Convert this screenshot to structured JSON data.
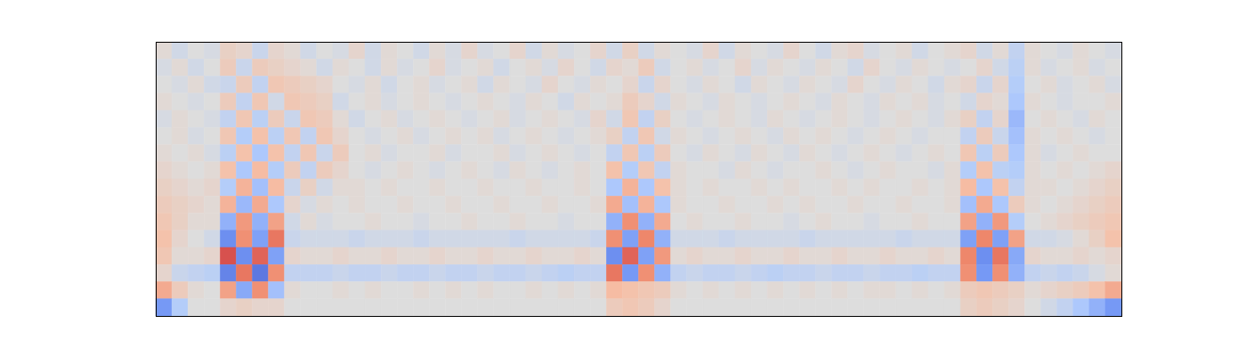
{
  "chart_data": {
    "type": "heatmap",
    "tick_labels": false,
    "zlim": [
      -1,
      1
    ],
    "cells": [
      [
        0.05,
        -0.1,
        0.0,
        -0.05,
        0.15,
        0.1,
        -0.15,
        0.1,
        0.05,
        -0.1,
        0.0,
        -0.05,
        0.1,
        -0.1,
        0.05,
        0.0,
        -0.1,
        0.05,
        -0.05,
        0.1,
        -0.05,
        0.0,
        0.1,
        -0.1,
        0.05,
        -0.05,
        0.0,
        0.1,
        -0.1,
        0.15,
        -0.1,
        0.05,
        0.0,
        -0.05,
        0.1,
        -0.1,
        0.05,
        0.0,
        -0.05,
        0.1,
        0.0,
        -0.1,
        0.05,
        0.1,
        -0.05,
        0.0,
        0.05,
        -0.1,
        0.0,
        0.05,
        0.1,
        -0.1,
        0.05,
        -0.2,
        0.05,
        0.0,
        -0.05,
        0.05,
        0.0,
        -0.05
      ],
      [
        -0.05,
        0.05,
        -0.1,
        0.0,
        0.2,
        -0.15,
        0.2,
        0.15,
        0.1,
        0.05,
        -0.1,
        0.05,
        0.0,
        -0.1,
        0.05,
        -0.05,
        0.0,
        0.1,
        -0.05,
        0.0,
        0.05,
        -0.1,
        0.0,
        0.05,
        -0.05,
        0.1,
        0.0,
        -0.1,
        0.1,
        0.05,
        0.2,
        -0.1,
        0.0,
        0.05,
        -0.05,
        0.0,
        0.1,
        -0.05,
        0.05,
        0.0,
        -0.05,
        0.05,
        0.0,
        -0.1,
        0.1,
        0.0,
        -0.05,
        0.05,
        0.0,
        -0.05,
        0.0,
        0.1,
        -0.1,
        -0.25,
        0.05,
        -0.05,
        0.0,
        0.05,
        -0.05,
        0.0
      ],
      [
        0.0,
        -0.05,
        0.05,
        -0.1,
        -0.15,
        0.2,
        -0.2,
        0.25,
        0.2,
        0.15,
        0.1,
        0.0,
        -0.05,
        0.05,
        -0.1,
        0.0,
        0.05,
        -0.05,
        0.0,
        0.05,
        -0.1,
        0.05,
        0.0,
        -0.05,
        0.1,
        0.0,
        -0.05,
        0.05,
        0.0,
        0.1,
        -0.15,
        0.1,
        0.0,
        -0.05,
        0.05,
        0.0,
        -0.1,
        0.05,
        0.0,
        -0.05,
        0.05,
        0.0,
        -0.05,
        0.1,
        0.0,
        -0.05,
        0.05,
        0.0,
        -0.1,
        0.05,
        0.1,
        -0.15,
        0.1,
        -0.3,
        0.0,
        0.05,
        -0.05,
        0.0,
        0.05,
        -0.05
      ],
      [
        0.05,
        0.0,
        -0.05,
        0.0,
        0.2,
        -0.2,
        0.25,
        -0.1,
        0.25,
        0.2,
        0.15,
        -0.1,
        0.0,
        0.05,
        -0.05,
        0.0,
        0.05,
        0.0,
        -0.05,
        0.0,
        0.05,
        0.0,
        -0.05,
        0.05,
        0.0,
        -0.1,
        0.05,
        0.0,
        0.05,
        0.2,
        0.1,
        -0.1,
        0.05,
        0.0,
        -0.05,
        0.05,
        0.0,
        -0.05,
        0.0,
        0.05,
        0.0,
        -0.05,
        0.05,
        0.0,
        -0.05,
        0.05,
        0.0,
        0.05,
        -0.05,
        0.0,
        -0.1,
        0.1,
        0.05,
        -0.35,
        0.05,
        0.0,
        -0.05,
        0.0,
        0.0,
        0.05
      ],
      [
        -0.05,
        0.05,
        0.0,
        -0.05,
        -0.2,
        0.25,
        -0.25,
        0.2,
        -0.15,
        0.25,
        0.2,
        0.05,
        -0.1,
        0.0,
        0.05,
        -0.05,
        0.0,
        0.05,
        0.0,
        -0.05,
        0.0,
        0.05,
        -0.05,
        0.0,
        0.05,
        0.0,
        -0.05,
        0.1,
        -0.1,
        0.25,
        -0.2,
        0.15,
        0.0,
        -0.05,
        0.0,
        0.05,
        0.0,
        -0.05,
        0.05,
        0.0,
        -0.05,
        0.0,
        0.05,
        0.0,
        -0.05,
        0.0,
        0.05,
        0.0,
        -0.05,
        0.05,
        0.15,
        -0.2,
        0.1,
        -0.45,
        0.0,
        0.05,
        0.0,
        -0.05,
        0.05,
        0.0
      ],
      [
        0.0,
        0.05,
        -0.05,
        0.0,
        0.25,
        -0.3,
        0.3,
        -0.25,
        0.25,
        -0.2,
        0.25,
        0.1,
        0.0,
        -0.05,
        0.0,
        0.05,
        -0.05,
        0.0,
        0.05,
        0.0,
        0.05,
        -0.05,
        0.0,
        0.05,
        0.0,
        -0.05,
        0.0,
        0.05,
        0.15,
        -0.2,
        0.25,
        -0.1,
        0.05,
        0.0,
        -0.05,
        0.0,
        0.05,
        0.0,
        -0.05,
        0.05,
        0.0,
        0.05,
        0.0,
        -0.05,
        0.0,
        0.05,
        0.0,
        -0.05,
        0.0,
        0.0,
        -0.2,
        0.2,
        -0.15,
        -0.4,
        0.05,
        0.0,
        0.05,
        0.0,
        -0.05,
        0.0
      ],
      [
        0.05,
        0.0,
        0.05,
        -0.05,
        -0.25,
        0.3,
        -0.35,
        0.3,
        -0.2,
        0.25,
        -0.15,
        0.2,
        0.0,
        0.05,
        -0.05,
        0.0,
        0.0,
        0.05,
        -0.05,
        0.0,
        0.0,
        0.05,
        -0.05,
        0.0,
        0.05,
        0.0,
        -0.05,
        0.0,
        -0.2,
        0.25,
        -0.25,
        0.2,
        0.0,
        -0.05,
        0.05,
        0.0,
        -0.05,
        0.05,
        0.0,
        -0.05,
        0.05,
        0.0,
        -0.05,
        0.0,
        0.05,
        0.0,
        -0.05,
        0.0,
        0.05,
        0.0,
        0.25,
        -0.25,
        0.2,
        -0.35,
        0.05,
        -0.05,
        0.0,
        0.05,
        0.0,
        0.0
      ],
      [
        0.1,
        0.05,
        0.0,
        0.05,
        0.3,
        -0.35,
        0.35,
        -0.3,
        0.2,
        -0.2,
        0.2,
        0.1,
        0.0,
        -0.05,
        0.0,
        0.05,
        0.0,
        -0.05,
        0.0,
        0.05,
        0.0,
        -0.05,
        0.05,
        0.0,
        -0.05,
        0.0,
        0.05,
        0.0,
        0.3,
        -0.3,
        0.25,
        -0.2,
        0.05,
        0.0,
        0.0,
        -0.05,
        0.05,
        0.0,
        -0.05,
        0.0,
        0.0,
        0.05,
        0.0,
        -0.05,
        0.0,
        0.05,
        0.0,
        0.0,
        -0.05,
        0.05,
        -0.3,
        0.3,
        -0.25,
        -0.3,
        0.05,
        0.0,
        0.05,
        0.0,
        0.05,
        0.1
      ],
      [
        0.15,
        0.1,
        0.05,
        0.1,
        -0.3,
        0.4,
        -0.4,
        0.35,
        -0.15,
        0.15,
        -0.1,
        0.05,
        0.05,
        0.0,
        0.05,
        0.0,
        0.0,
        0.05,
        0.0,
        0.0,
        0.05,
        0.0,
        0.0,
        0.05,
        0.0,
        0.0,
        0.05,
        0.0,
        -0.35,
        0.4,
        -0.35,
        0.3,
        0.05,
        0.0,
        0.05,
        0.0,
        0.0,
        0.05,
        0.0,
        0.05,
        0.0,
        0.0,
        0.05,
        0.0,
        0.05,
        0.0,
        0.0,
        0.05,
        0.0,
        0.05,
        0.35,
        -0.35,
        0.3,
        -0.2,
        0.05,
        0.05,
        0.0,
        0.05,
        0.1,
        0.15
      ],
      [
        0.2,
        0.15,
        0.1,
        0.05,
        0.4,
        -0.45,
        0.45,
        -0.35,
        0.1,
        -0.05,
        0.05,
        0.0,
        0.05,
        0.0,
        0.0,
        0.05,
        0.0,
        0.0,
        0.05,
        0.0,
        0.0,
        0.05,
        0.0,
        0.0,
        0.05,
        0.0,
        0.0,
        0.05,
        0.45,
        -0.4,
        0.4,
        -0.35,
        0.05,
        0.0,
        0.0,
        0.05,
        0.0,
        0.0,
        0.05,
        0.0,
        0.05,
        0.0,
        0.0,
        0.05,
        0.0,
        0.0,
        0.05,
        0.0,
        0.0,
        0.05,
        -0.4,
        0.45,
        -0.35,
        0.2,
        0.05,
        0.0,
        0.05,
        0.1,
        0.15,
        0.2
      ],
      [
        0.25,
        0.15,
        0.05,
        0.05,
        -0.5,
        0.55,
        -0.5,
        0.5,
        -0.1,
        0.05,
        -0.05,
        0.0,
        0.0,
        0.05,
        0.0,
        0.0,
        -0.05,
        0.0,
        0.0,
        0.05,
        0.0,
        0.0,
        0.05,
        0.0,
        0.0,
        -0.05,
        0.0,
        0.0,
        -0.5,
        0.6,
        -0.5,
        0.45,
        0.0,
        0.05,
        0.0,
        0.0,
        0.05,
        0.0,
        0.0,
        -0.05,
        0.0,
        0.05,
        0.0,
        0.0,
        -0.05,
        0.0,
        0.0,
        0.05,
        0.0,
        0.0,
        0.5,
        -0.5,
        0.55,
        -0.3,
        0.0,
        0.05,
        0.1,
        0.15,
        0.2,
        0.25
      ],
      [
        0.3,
        0.1,
        0.0,
        -0.1,
        -0.7,
        0.6,
        -0.6,
        0.7,
        -0.15,
        -0.1,
        -0.1,
        -0.1,
        -0.15,
        -0.1,
        -0.1,
        -0.1,
        -0.15,
        -0.1,
        -0.1,
        -0.1,
        -0.1,
        -0.1,
        -0.15,
        -0.1,
        -0.1,
        -0.1,
        -0.1,
        -0.15,
        0.6,
        -0.6,
        0.65,
        -0.5,
        -0.1,
        -0.1,
        -0.1,
        -0.15,
        -0.1,
        -0.1,
        -0.1,
        -0.1,
        -0.15,
        -0.1,
        -0.1,
        -0.1,
        -0.1,
        -0.1,
        -0.15,
        -0.1,
        -0.1,
        -0.1,
        -0.6,
        0.65,
        -0.6,
        0.5,
        -0.1,
        -0.1,
        -0.05,
        0.05,
        0.15,
        0.3
      ],
      [
        0.25,
        0.05,
        0.05,
        0.1,
        0.8,
        -0.7,
        0.75,
        -0.6,
        0.1,
        0.05,
        0.05,
        0.1,
        0.05,
        0.05,
        0.1,
        0.05,
        0.05,
        0.1,
        0.05,
        0.05,
        0.1,
        0.05,
        0.05,
        0.1,
        0.05,
        0.05,
        0.1,
        0.05,
        -0.7,
        0.75,
        -0.6,
        0.55,
        0.05,
        0.1,
        0.05,
        0.05,
        0.1,
        0.05,
        0.05,
        0.1,
        0.05,
        0.05,
        0.1,
        0.05,
        0.05,
        0.1,
        0.05,
        0.05,
        0.1,
        0.05,
        0.65,
        -0.7,
        0.7,
        -0.55,
        0.1,
        0.05,
        0.05,
        0.1,
        0.05,
        0.1
      ],
      [
        0.1,
        -0.15,
        -0.2,
        -0.25,
        -0.75,
        0.7,
        -0.8,
        0.6,
        -0.2,
        -0.2,
        -0.2,
        -0.15,
        -0.2,
        -0.2,
        -0.15,
        -0.2,
        -0.2,
        -0.15,
        -0.2,
        -0.2,
        -0.15,
        -0.2,
        -0.2,
        -0.15,
        -0.2,
        -0.25,
        -0.2,
        -0.2,
        0.7,
        -0.65,
        0.6,
        -0.5,
        -0.2,
        -0.15,
        -0.2,
        -0.2,
        -0.15,
        -0.2,
        -0.25,
        -0.2,
        -0.2,
        -0.15,
        -0.2,
        -0.2,
        -0.15,
        -0.2,
        -0.2,
        -0.25,
        -0.2,
        -0.2,
        0.6,
        -0.65,
        0.6,
        -0.5,
        -0.2,
        -0.15,
        -0.2,
        -0.15,
        -0.05,
        0.05
      ],
      [
        0.45,
        0.2,
        0.05,
        0.0,
        0.5,
        -0.55,
        0.6,
        -0.4,
        0.05,
        0.0,
        0.0,
        0.05,
        0.0,
        0.05,
        0.0,
        0.0,
        0.05,
        0.0,
        0.05,
        0.0,
        0.05,
        0.0,
        0.0,
        0.05,
        0.0,
        0.05,
        0.0,
        0.05,
        0.35,
        0.3,
        0.25,
        0.2,
        0.05,
        0.0,
        0.05,
        0.0,
        0.05,
        0.0,
        0.05,
        0.0,
        0.05,
        0.0,
        0.05,
        0.0,
        0.05,
        0.05,
        0.0,
        0.05,
        0.0,
        0.05,
        0.2,
        0.25,
        0.2,
        0.15,
        0.05,
        0.1,
        0.15,
        0.2,
        0.3,
        0.45
      ],
      [
        -0.65,
        -0.3,
        0.0,
        0.0,
        0.1,
        0.15,
        0.1,
        0.1,
        0.0,
        0.0,
        0.0,
        0.0,
        0.0,
        0.0,
        0.0,
        0.0,
        0.0,
        0.0,
        0.0,
        0.0,
        0.0,
        0.0,
        0.0,
        0.0,
        0.0,
        0.0,
        0.0,
        0.0,
        0.2,
        0.25,
        0.2,
        0.1,
        0.0,
        0.0,
        0.0,
        0.0,
        0.0,
        0.0,
        0.0,
        0.0,
        0.0,
        0.0,
        0.0,
        0.0,
        0.0,
        0.0,
        0.0,
        0.0,
        0.0,
        0.0,
        0.15,
        0.2,
        0.15,
        0.1,
        0.0,
        -0.1,
        -0.2,
        -0.35,
        -0.5,
        -0.65
      ]
    ]
  }
}
